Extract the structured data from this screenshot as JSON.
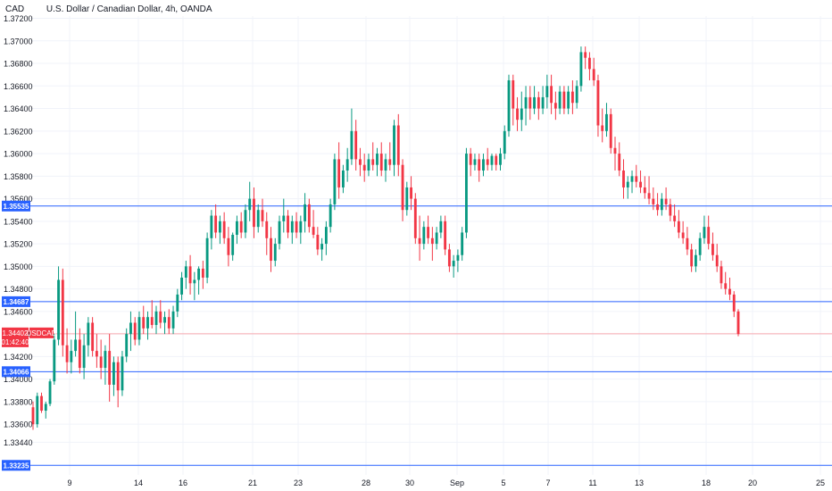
{
  "header": {
    "symbol": "CAD",
    "title": "U.S. Dollar / Canadian Dollar, 4h, OANDA"
  },
  "colors": {
    "up": "#089981",
    "down": "#f23645",
    "hline": "#2962ff",
    "price_line": "#f7a8ae",
    "grid": "#f0f3fa",
    "label_text": "#131722"
  },
  "chart_data": {
    "type": "candlestick",
    "price_axis": {
      "ticks": [
        "1.37200",
        "1.37000",
        "1.36800",
        "1.36600",
        "1.36400",
        "1.36200",
        "1.36000",
        "1.35800",
        "1.35600",
        "1.35400",
        "1.35200",
        "1.35000",
        "1.34800",
        "1.34600",
        "1.34400",
        "1.34200",
        "1.34000",
        "1.33800",
        "1.33600",
        "1.33440"
      ],
      "range": [
        1.3315,
        1.3722
      ]
    },
    "date_axis": {
      "ticks": [
        "9",
        "14",
        "16",
        "21",
        "23",
        "28",
        "30",
        "Sep",
        "5",
        "7",
        "11",
        "13",
        "18",
        "20",
        "25"
      ]
    },
    "horizontal_lines": [
      {
        "price": 1.35535,
        "label": "1.35535"
      },
      {
        "price": 1.34687,
        "label": "1.34687"
      },
      {
        "price": 1.34066,
        "label": "1.34066"
      },
      {
        "price": 1.33235,
        "label": "1.33235"
      }
    ],
    "last_price": {
      "price": 1.34402,
      "label": "1.34402",
      "symbol": "USDCAD",
      "countdown": "01:42:40"
    },
    "candles": [
      [
        1.3375,
        1.338,
        1.3355,
        1.336
      ],
      [
        1.336,
        1.3388,
        1.3357,
        1.3385
      ],
      [
        1.3385,
        1.3388,
        1.337,
        1.3372
      ],
      [
        1.3372,
        1.338,
        1.3365,
        1.3378
      ],
      [
        1.3378,
        1.34,
        1.3376,
        1.3398
      ],
      [
        1.3398,
        1.344,
        1.3395,
        1.3435
      ],
      [
        1.3435,
        1.35,
        1.343,
        1.3488
      ],
      [
        1.3488,
        1.3498,
        1.342,
        1.343
      ],
      [
        1.343,
        1.3445,
        1.3405,
        1.3415
      ],
      [
        1.3415,
        1.3435,
        1.3405,
        1.3425
      ],
      [
        1.3425,
        1.346,
        1.342,
        1.3435
      ],
      [
        1.3435,
        1.3445,
        1.3405,
        1.341
      ],
      [
        1.341,
        1.344,
        1.34,
        1.343
      ],
      [
        1.343,
        1.3455,
        1.342,
        1.345
      ],
      [
        1.345,
        1.3455,
        1.342,
        1.3425
      ],
      [
        1.3425,
        1.344,
        1.341,
        1.342
      ],
      [
        1.342,
        1.3435,
        1.34,
        1.341
      ],
      [
        1.341,
        1.343,
        1.3395,
        1.3425
      ],
      [
        1.3425,
        1.344,
        1.338,
        1.3395
      ],
      [
        1.3395,
        1.342,
        1.3385,
        1.3415
      ],
      [
        1.3415,
        1.342,
        1.3375,
        1.339
      ],
      [
        1.339,
        1.3425,
        1.3385,
        1.342
      ],
      [
        1.342,
        1.3445,
        1.3415,
        1.344
      ],
      [
        1.344,
        1.346,
        1.3425,
        1.345
      ],
      [
        1.345,
        1.3455,
        1.343,
        1.3435
      ],
      [
        1.3435,
        1.346,
        1.343,
        1.3455
      ],
      [
        1.3455,
        1.3465,
        1.344,
        1.3445
      ],
      [
        1.3445,
        1.346,
        1.3435,
        1.3455
      ],
      [
        1.3455,
        1.347,
        1.3445,
        1.3448
      ],
      [
        1.3448,
        1.3465,
        1.344,
        1.346
      ],
      [
        1.346,
        1.347,
        1.3445,
        1.345
      ],
      [
        1.345,
        1.346,
        1.344,
        1.3455
      ],
      [
        1.3455,
        1.3462,
        1.344,
        1.3445
      ],
      [
        1.3445,
        1.3465,
        1.344,
        1.346
      ],
      [
        1.346,
        1.348,
        1.3455,
        1.3475
      ],
      [
        1.3475,
        1.3495,
        1.347,
        1.349
      ],
      [
        1.349,
        1.3505,
        1.348,
        1.35
      ],
      [
        1.35,
        1.351,
        1.3475,
        1.3485
      ],
      [
        1.3485,
        1.3495,
        1.347,
        1.3488
      ],
      [
        1.3488,
        1.35,
        1.3475,
        1.3498
      ],
      [
        1.3498,
        1.3505,
        1.348,
        1.349
      ],
      [
        1.349,
        1.353,
        1.3485,
        1.3525
      ],
      [
        1.3525,
        1.355,
        1.3515,
        1.3545
      ],
      [
        1.3545,
        1.3555,
        1.3525,
        1.353
      ],
      [
        1.353,
        1.3545,
        1.352,
        1.354
      ],
      [
        1.354,
        1.3548,
        1.352,
        1.3525
      ],
      [
        1.3525,
        1.3535,
        1.35,
        1.351
      ],
      [
        1.351,
        1.353,
        1.3505,
        1.3528
      ],
      [
        1.3528,
        1.3545,
        1.352,
        1.354
      ],
      [
        1.354,
        1.3548,
        1.3525,
        1.353
      ],
      [
        1.353,
        1.3555,
        1.3525,
        1.355
      ],
      [
        1.355,
        1.3575,
        1.354,
        1.356
      ],
      [
        1.356,
        1.357,
        1.3525,
        1.3535
      ],
      [
        1.3535,
        1.3555,
        1.353,
        1.355
      ],
      [
        1.355,
        1.356,
        1.3535,
        1.354
      ],
      [
        1.354,
        1.3548,
        1.351,
        1.3525
      ],
      [
        1.3525,
        1.3535,
        1.3495,
        1.3505
      ],
      [
        1.3505,
        1.3525,
        1.35,
        1.352
      ],
      [
        1.352,
        1.3545,
        1.3515,
        1.354
      ],
      [
        1.354,
        1.356,
        1.353,
        1.3545
      ],
      [
        1.3545,
        1.355,
        1.3525,
        1.353
      ],
      [
        1.353,
        1.3545,
        1.352,
        1.354
      ],
      [
        1.354,
        1.3548,
        1.3525,
        1.353
      ],
      [
        1.353,
        1.3545,
        1.352,
        1.354
      ],
      [
        1.354,
        1.3565,
        1.353,
        1.3555
      ],
      [
        1.3555,
        1.356,
        1.353,
        1.3535
      ],
      [
        1.3535,
        1.355,
        1.3525,
        1.3528
      ],
      [
        1.3528,
        1.3535,
        1.351,
        1.3515
      ],
      [
        1.3515,
        1.3525,
        1.3505,
        1.352
      ],
      [
        1.352,
        1.354,
        1.351,
        1.3535
      ],
      [
        1.3535,
        1.356,
        1.353,
        1.3555
      ],
      [
        1.3555,
        1.36,
        1.355,
        1.3595
      ],
      [
        1.3595,
        1.361,
        1.356,
        1.357
      ],
      [
        1.357,
        1.359,
        1.3565,
        1.3585
      ],
      [
        1.3585,
        1.3605,
        1.3575,
        1.3595
      ],
      [
        1.3595,
        1.364,
        1.359,
        1.362
      ],
      [
        1.362,
        1.363,
        1.3585,
        1.3595
      ],
      [
        1.3595,
        1.3605,
        1.358,
        1.359
      ],
      [
        1.359,
        1.36,
        1.3575,
        1.3585
      ],
      [
        1.3585,
        1.36,
        1.358,
        1.3595
      ],
      [
        1.3595,
        1.361,
        1.3585,
        1.359
      ],
      [
        1.359,
        1.3605,
        1.358,
        1.36
      ],
      [
        1.36,
        1.361,
        1.358,
        1.3585
      ],
      [
        1.3585,
        1.36,
        1.3575,
        1.3595
      ],
      [
        1.3595,
        1.361,
        1.3585,
        1.359
      ],
      [
        1.359,
        1.363,
        1.358,
        1.3625
      ],
      [
        1.3625,
        1.3635,
        1.358,
        1.359
      ],
      [
        1.359,
        1.3595,
        1.354,
        1.355
      ],
      [
        1.355,
        1.3575,
        1.3545,
        1.357
      ],
      [
        1.357,
        1.358,
        1.355,
        1.356
      ],
      [
        1.356,
        1.3565,
        1.352,
        1.3525
      ],
      [
        1.3525,
        1.3545,
        1.3505,
        1.352
      ],
      [
        1.352,
        1.354,
        1.3515,
        1.3535
      ],
      [
        1.3535,
        1.3545,
        1.352,
        1.3525
      ],
      [
        1.3525,
        1.3535,
        1.3505,
        1.352
      ],
      [
        1.352,
        1.3535,
        1.3515,
        1.353
      ],
      [
        1.353,
        1.3545,
        1.3525,
        1.354
      ],
      [
        1.354,
        1.3545,
        1.351,
        1.3515
      ],
      [
        1.3515,
        1.352,
        1.3495,
        1.35
      ],
      [
        1.35,
        1.351,
        1.349,
        1.3505
      ],
      [
        1.3505,
        1.3515,
        1.3495,
        1.351
      ],
      [
        1.351,
        1.3535,
        1.3505,
        1.353
      ],
      [
        1.353,
        1.3605,
        1.3525,
        1.36
      ],
      [
        1.36,
        1.3605,
        1.358,
        1.359
      ],
      [
        1.359,
        1.36,
        1.3585,
        1.3595
      ],
      [
        1.3595,
        1.36,
        1.3575,
        1.3585
      ],
      [
        1.3585,
        1.36,
        1.358,
        1.3595
      ],
      [
        1.3595,
        1.3605,
        1.3585,
        1.359
      ],
      [
        1.359,
        1.36,
        1.3585,
        1.3598
      ],
      [
        1.3598,
        1.36,
        1.3585,
        1.359
      ],
      [
        1.359,
        1.3605,
        1.3585,
        1.36
      ],
      [
        1.36,
        1.3625,
        1.3595,
        1.362
      ],
      [
        1.362,
        1.367,
        1.3615,
        1.3665
      ],
      [
        1.3665,
        1.367,
        1.3625,
        1.364
      ],
      [
        1.364,
        1.365,
        1.362,
        1.363
      ],
      [
        1.363,
        1.3655,
        1.362,
        1.364
      ],
      [
        1.364,
        1.366,
        1.3625,
        1.365
      ],
      [
        1.365,
        1.366,
        1.363,
        1.364
      ],
      [
        1.364,
        1.366,
        1.3635,
        1.365
      ],
      [
        1.365,
        1.3655,
        1.363,
        1.364
      ],
      [
        1.364,
        1.366,
        1.3635,
        1.365
      ],
      [
        1.365,
        1.367,
        1.364,
        1.366
      ],
      [
        1.366,
        1.367,
        1.3635,
        1.3645
      ],
      [
        1.3645,
        1.3655,
        1.363,
        1.364
      ],
      [
        1.364,
        1.366,
        1.3635,
        1.3655
      ],
      [
        1.3655,
        1.366,
        1.3635,
        1.364
      ],
      [
        1.364,
        1.366,
        1.3635,
        1.3655
      ],
      [
        1.3655,
        1.3665,
        1.3635,
        1.3645
      ],
      [
        1.3645,
        1.3665,
        1.364,
        1.366
      ],
      [
        1.366,
        1.3695,
        1.3655,
        1.369
      ],
      [
        1.369,
        1.3695,
        1.3675,
        1.3685
      ],
      [
        1.3685,
        1.369,
        1.3665,
        1.3675
      ],
      [
        1.3675,
        1.3685,
        1.366,
        1.3665
      ],
      [
        1.3665,
        1.367,
        1.3615,
        1.3625
      ],
      [
        1.3625,
        1.364,
        1.361,
        1.362
      ],
      [
        1.362,
        1.3645,
        1.3615,
        1.3635
      ],
      [
        1.3635,
        1.364,
        1.36,
        1.3605
      ],
      [
        1.3605,
        1.3615,
        1.3585,
        1.36
      ],
      [
        1.36,
        1.361,
        1.358,
        1.3585
      ],
      [
        1.3585,
        1.3595,
        1.356,
        1.357
      ],
      [
        1.357,
        1.358,
        1.356,
        1.3575
      ],
      [
        1.3575,
        1.3585,
        1.3565,
        1.358
      ],
      [
        1.358,
        1.359,
        1.357,
        1.3575
      ],
      [
        1.3575,
        1.3585,
        1.3565,
        1.357
      ],
      [
        1.357,
        1.358,
        1.356,
        1.3565
      ],
      [
        1.3565,
        1.358,
        1.3555,
        1.356
      ],
      [
        1.356,
        1.357,
        1.355,
        1.3555
      ],
      [
        1.3555,
        1.3565,
        1.3545,
        1.355
      ],
      [
        1.355,
        1.3565,
        1.3545,
        1.356
      ],
      [
        1.356,
        1.357,
        1.355,
        1.3555
      ],
      [
        1.3555,
        1.356,
        1.354,
        1.3545
      ],
      [
        1.3545,
        1.3555,
        1.3535,
        1.354
      ],
      [
        1.354,
        1.355,
        1.3525,
        1.353
      ],
      [
        1.353,
        1.354,
        1.352,
        1.3525
      ],
      [
        1.3525,
        1.3535,
        1.351,
        1.3515
      ],
      [
        1.3515,
        1.352,
        1.3495,
        1.35
      ],
      [
        1.35,
        1.3515,
        1.3495,
        1.351
      ],
      [
        1.351,
        1.353,
        1.3505,
        1.3525
      ],
      [
        1.3525,
        1.3545,
        1.352,
        1.3535
      ],
      [
        1.3535,
        1.3545,
        1.3515,
        1.352
      ],
      [
        1.352,
        1.353,
        1.3505,
        1.351
      ],
      [
        1.351,
        1.352,
        1.3495,
        1.35
      ],
      [
        1.35,
        1.3505,
        1.348,
        1.3485
      ],
      [
        1.3485,
        1.3495,
        1.3475,
        1.348
      ],
      [
        1.348,
        1.349,
        1.347,
        1.3475
      ],
      [
        1.3475,
        1.3478,
        1.3455,
        1.346
      ],
      [
        1.346,
        1.3462,
        1.3438,
        1.344
      ]
    ]
  }
}
